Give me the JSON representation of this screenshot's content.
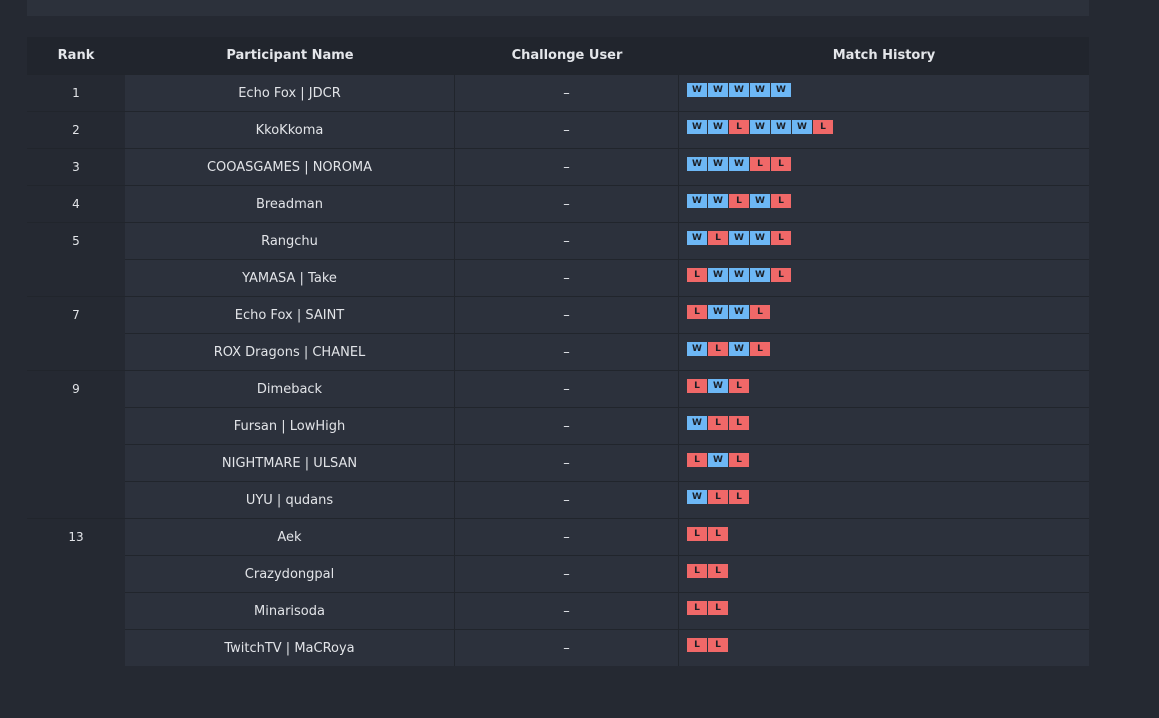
{
  "headers": {
    "rank": "Rank",
    "participant": "Participant Name",
    "challonge": "Challonge User",
    "history": "Match History"
  },
  "rows": [
    {
      "rank": "1",
      "name": "Echo Fox | JDCR",
      "user": "–",
      "history": [
        "W",
        "W",
        "W",
        "W",
        "W"
      ]
    },
    {
      "rank": "2",
      "name": "KkoKkoma",
      "user": "–",
      "history": [
        "W",
        "W",
        "L",
        "W",
        "W",
        "W",
        "L"
      ]
    },
    {
      "rank": "3",
      "name": "COOASGAMES | NOROMA",
      "user": "–",
      "history": [
        "W",
        "W",
        "W",
        "L",
        "L"
      ]
    },
    {
      "rank": "4",
      "name": "Breadman",
      "user": "–",
      "history": [
        "W",
        "W",
        "L",
        "W",
        "L"
      ]
    },
    {
      "rank": "5",
      "name": "Rangchu",
      "user": "–",
      "history": [
        "W",
        "L",
        "W",
        "W",
        "L"
      ]
    },
    {
      "rank": "",
      "name": "YAMASA | Take",
      "user": "–",
      "history": [
        "L",
        "W",
        "W",
        "W",
        "L"
      ]
    },
    {
      "rank": "7",
      "name": "Echo Fox | SAINT",
      "user": "–",
      "history": [
        "L",
        "W",
        "W",
        "L"
      ]
    },
    {
      "rank": "",
      "name": "ROX Dragons | CHANEL",
      "user": "–",
      "history": [
        "W",
        "L",
        "W",
        "L"
      ]
    },
    {
      "rank": "9",
      "name": "Dimeback",
      "user": "–",
      "history": [
        "L",
        "W",
        "L"
      ]
    },
    {
      "rank": "",
      "name": "Fursan | LowHigh",
      "user": "–",
      "history": [
        "W",
        "L",
        "L"
      ]
    },
    {
      "rank": "",
      "name": "NIGHTMARE | ULSAN",
      "user": "–",
      "history": [
        "L",
        "W",
        "L"
      ]
    },
    {
      "rank": "",
      "name": "UYU | qudans",
      "user": "–",
      "history": [
        "W",
        "L",
        "L"
      ]
    },
    {
      "rank": "13",
      "name": "Aek",
      "user": "–",
      "history": [
        "L",
        "L"
      ]
    },
    {
      "rank": "",
      "name": "Crazydongpal",
      "user": "–",
      "history": [
        "L",
        "L"
      ]
    },
    {
      "rank": "",
      "name": "Minarisoda",
      "user": "–",
      "history": [
        "L",
        "L"
      ]
    },
    {
      "rank": "",
      "name": "TwitchTV | MaCRoya",
      "user": "–",
      "history": [
        "L",
        "L"
      ]
    }
  ],
  "colors": {
    "win": "#6db7f5",
    "loss": "#f06868",
    "background": "#252932",
    "row": "#2c313c",
    "header": "#21252d"
  }
}
